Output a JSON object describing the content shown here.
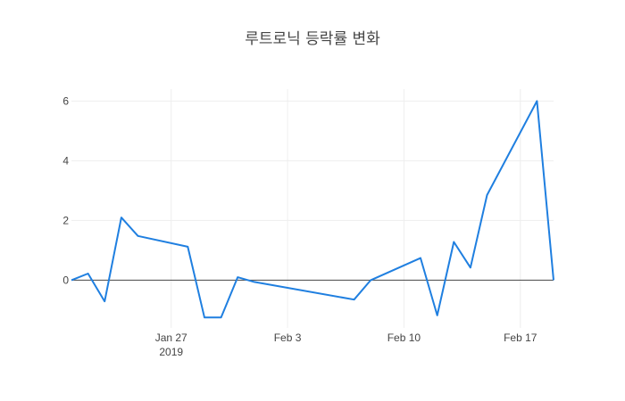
{
  "chart_data": {
    "type": "line",
    "title": "루트로닉 등락률 변화",
    "xlabel": "",
    "ylabel": "",
    "x": [
      "2019-01-21",
      "2019-01-22",
      "2019-01-23",
      "2019-01-24",
      "2019-01-25",
      "2019-01-28",
      "2019-01-29",
      "2019-01-30",
      "2019-01-31",
      "2019-02-01",
      "2019-02-07",
      "2019-02-08",
      "2019-02-11",
      "2019-02-12",
      "2019-02-13",
      "2019-02-14",
      "2019-02-15",
      "2019-02-18",
      "2019-02-19"
    ],
    "values": [
      0.0,
      0.22,
      -0.71,
      2.1,
      1.48,
      1.12,
      -1.25,
      -1.25,
      0.1,
      -0.06,
      -0.65,
      0.0,
      0.74,
      -1.18,
      1.28,
      0.42,
      2.85,
      6.0,
      0.0
    ],
    "ylim": [
      -1.6,
      6.4
    ],
    "xlim": [
      "2019-01-21",
      "2019-02-19"
    ],
    "x_ticks": [
      {
        "date": "2019-01-27",
        "label": "Jan 27",
        "sublabel": "2019"
      },
      {
        "date": "2019-02-03",
        "label": "Feb 3",
        "sublabel": ""
      },
      {
        "date": "2019-02-10",
        "label": "Feb 10",
        "sublabel": ""
      },
      {
        "date": "2019-02-17",
        "label": "Feb 17",
        "sublabel": ""
      }
    ],
    "y_ticks": [
      0,
      2,
      4,
      6
    ],
    "grid": true,
    "line_color": "#1f7fe0"
  }
}
